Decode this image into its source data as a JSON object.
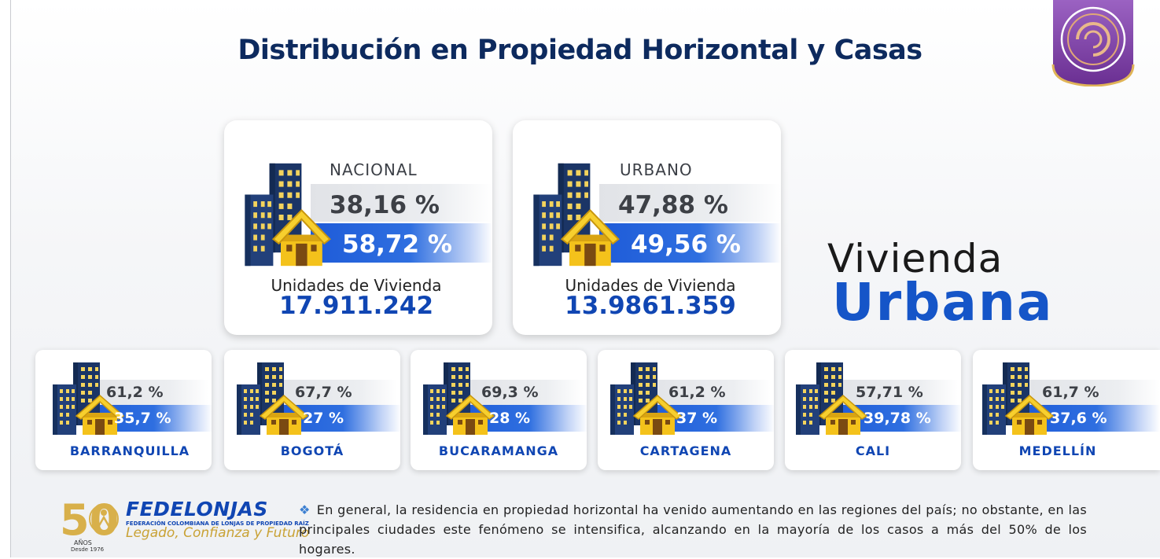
{
  "title": "Distribución en Propiedad Horizontal y Casas",
  "colors": {
    "navy": "#0d2a5e",
    "blue": "#1046b3",
    "bar_blue": "#2a66dc",
    "gold": "#f4c21b",
    "badge_purple": "#8f55b4"
  },
  "national": {
    "label": "NACIONAL",
    "pct_horizontal": "38,16 %",
    "pct_casas": "58,72 %",
    "units_label": "Unidades de Vivienda",
    "units_value": "17.911.242"
  },
  "urban": {
    "label": "URBANO",
    "pct_horizontal": "47,88 %",
    "pct_casas": "49,56 %",
    "units_label": "Unidades de Vivienda",
    "units_value": "13.9861.359"
  },
  "vivienda": {
    "line1": "Vivienda",
    "line2": "Urbana"
  },
  "cities": [
    {
      "name": "BARRANQUILLA",
      "pct_horizontal": "61,2 %",
      "pct_casas": "35,7 %"
    },
    {
      "name": "BOGOTÁ",
      "pct_horizontal": "67,7 %",
      "pct_casas": "27 %"
    },
    {
      "name": "BUCARAMANGA",
      "pct_horizontal": "69,3 %",
      "pct_casas": "28 %"
    },
    {
      "name": "CARTAGENA",
      "pct_horizontal": "61,2 %",
      "pct_casas": "37 %"
    },
    {
      "name": "CALI",
      "pct_horizontal": "57,71 %",
      "pct_casas": "39,78 %"
    },
    {
      "name": "MEDELLÍN",
      "pct_horizontal": "61,7 %",
      "pct_casas": "37,6 %"
    }
  ],
  "footer": {
    "logo_number": "50",
    "logo_anos": "AÑOS",
    "logo_desde": "Desde 1976",
    "org_name": "FEDELONJAS",
    "org_full": "FEDERACIÓN COLOMBIANA DE LONJAS DE PROPIEDAD RAÍZ",
    "slogan": "Legado, Confianza y Futuro",
    "note": "En general, la residencia en propiedad horizontal ha venido aumentando en las regiones del país; no obstante, en las principales ciudades este fenómeno se intensifica, alcanzando en la mayoría de los casos a más del 50% de los hogares."
  },
  "icons": {
    "building": "building-house-icon",
    "badge": "emblem-badge-icon",
    "bullet": "diamond-bullet-icon"
  }
}
